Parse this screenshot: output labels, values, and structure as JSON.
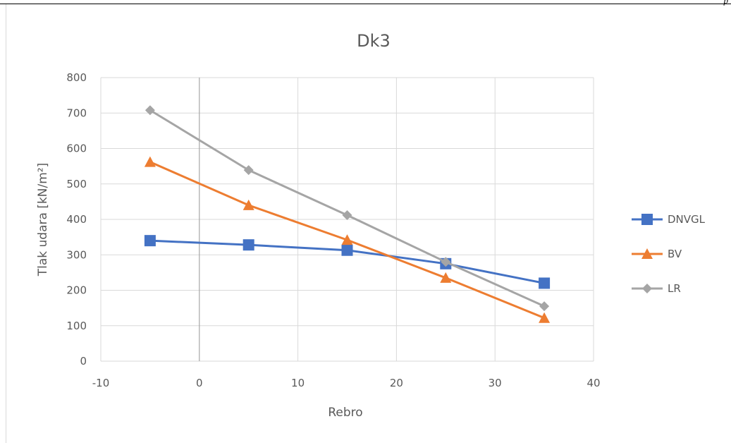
{
  "page": {
    "corner_mark": "p"
  },
  "chart_data": {
    "type": "scatter",
    "title": "Dk3",
    "xlabel": "Rebro",
    "ylabel": "Tlak udara [kN/m²]",
    "xlim": [
      -10,
      40
    ],
    "ylim": [
      0,
      800
    ],
    "xticks": [
      -10,
      0,
      10,
      20,
      30,
      40
    ],
    "yticks": [
      0,
      100,
      200,
      300,
      400,
      500,
      600,
      700,
      800
    ],
    "grid": true,
    "legend_position": "right",
    "x": [
      -5,
      5,
      15,
      25,
      35
    ],
    "series": [
      {
        "name": "DNVGL",
        "color": "#4472C4",
        "marker": "square",
        "values": [
          340,
          328,
          313,
          275,
          220
        ]
      },
      {
        "name": "BV",
        "color": "#ED7D31",
        "marker": "triangle",
        "values": [
          562,
          440,
          342,
          235,
          122
        ]
      },
      {
        "name": "LR",
        "color": "#A5A5A5",
        "marker": "diamond",
        "values": [
          708,
          539,
          412,
          280,
          155
        ]
      }
    ]
  }
}
